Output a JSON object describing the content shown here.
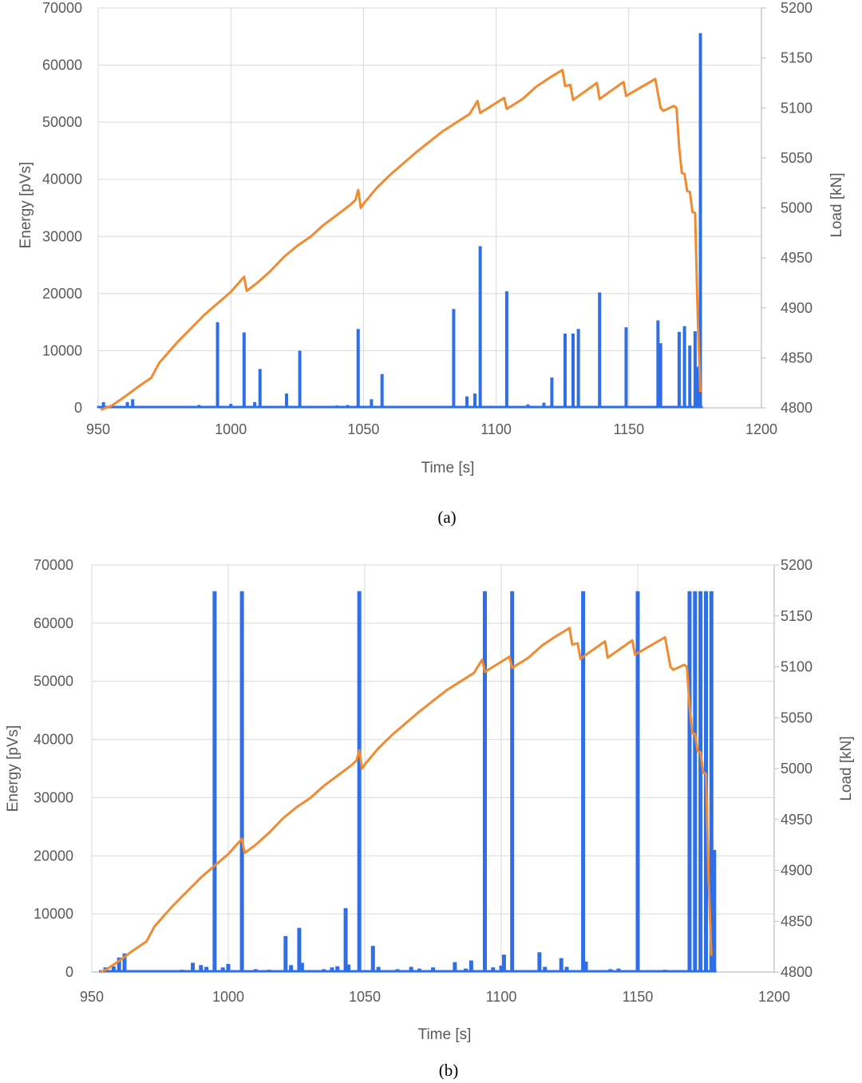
{
  "colors": {
    "energy": "#2E6FE8",
    "load": "#F28A30",
    "grid": "#D9D9D9",
    "axis": "#BFBFBF"
  },
  "chart_data": [
    {
      "type": "bar",
      "caption": "(a)",
      "xlabel": "Time [s]",
      "ylabel": "Energy [pVs]",
      "y2label": "Load [kN]",
      "xlim": [
        950,
        1200
      ],
      "ylim": [
        0,
        70000
      ],
      "y2lim": [
        4800,
        5200
      ],
      "xticks": [
        "950",
        "1000",
        "1050",
        "1100",
        "1150",
        "1200"
      ],
      "yticks": [
        "0",
        "10000",
        "20000",
        "30000",
        "40000",
        "50000",
        "60000",
        "70000"
      ],
      "y2ticks": [
        "4800",
        "4850",
        "4900",
        "4950",
        "5000",
        "5050",
        "5100",
        "5150",
        "5200"
      ],
      "grid": true,
      "series": [
        {
          "kind": "bar",
          "axis": "left",
          "points": [
            [
              952,
              1000
            ],
            [
              961,
              1000
            ],
            [
              963,
              1500
            ],
            [
              986,
              300
            ],
            [
              988,
              500
            ],
            [
              995,
              15000
            ],
            [
              1000,
              700
            ],
            [
              1005,
              13200
            ],
            [
              1009,
              1000
            ],
            [
              1011,
              6800
            ],
            [
              1021,
              2500
            ],
            [
              1026,
              10000
            ],
            [
              1033,
              300
            ],
            [
              1040,
              400
            ],
            [
              1044,
              500
            ],
            [
              1048,
              13800
            ],
            [
              1053,
              1500
            ],
            [
              1057,
              5900
            ],
            [
              1075,
              300
            ],
            [
              1084,
              17300
            ],
            [
              1089,
              2000
            ],
            [
              1092,
              2500
            ],
            [
              1094,
              28300
            ],
            [
              1104,
              20400
            ],
            [
              1112,
              600
            ],
            [
              1118,
              900
            ],
            [
              1121,
              5300
            ],
            [
              1126,
              13000
            ],
            [
              1129,
              13000
            ],
            [
              1131,
              13800
            ],
            [
              1139,
              20200
            ],
            [
              1149,
              14100
            ],
            [
              1161,
              15300
            ],
            [
              1162,
              11300
            ],
            [
              1169,
              13300
            ],
            [
              1171,
              14300
            ],
            [
              1173,
              10900
            ],
            [
              1175,
              13400
            ],
            [
              1176,
              7200
            ],
            [
              1177,
              65600
            ]
          ]
        },
        {
          "kind": "line",
          "axis": "right",
          "points": [
            [
              951,
              4798
            ],
            [
              955,
              4802
            ],
            [
              960,
              4811
            ],
            [
              965,
              4821
            ],
            [
              970,
              4830
            ],
            [
              973,
              4845
            ],
            [
              980,
              4866
            ],
            [
              990,
              4893
            ],
            [
              1000,
              4916
            ],
            [
              1005,
              4931
            ],
            [
              1006,
              4917
            ],
            [
              1010,
              4925
            ],
            [
              1015,
              4937
            ],
            [
              1020,
              4951
            ],
            [
              1025,
              4962
            ],
            [
              1030,
              4971
            ],
            [
              1035,
              4983
            ],
            [
              1040,
              4993
            ],
            [
              1045,
              5003
            ],
            [
              1047,
              5008
            ],
            [
              1048,
              5018
            ],
            [
              1049,
              5000
            ],
            [
              1050,
              5004
            ],
            [
              1055,
              5020
            ],
            [
              1060,
              5033
            ],
            [
              1070,
              5056
            ],
            [
              1080,
              5077
            ],
            [
              1090,
              5094
            ],
            [
              1093,
              5107
            ],
            [
              1094,
              5095
            ],
            [
              1103,
              5110
            ],
            [
              1104,
              5099
            ],
            [
              1110,
              5109
            ],
            [
              1115,
              5121
            ],
            [
              1120,
              5130
            ],
            [
              1125,
              5138
            ],
            [
              1126,
              5122
            ],
            [
              1128,
              5123
            ],
            [
              1129,
              5108
            ],
            [
              1138,
              5125
            ],
            [
              1139,
              5109
            ],
            [
              1148,
              5126
            ],
            [
              1149,
              5112
            ],
            [
              1160,
              5129
            ],
            [
              1162,
              5100
            ],
            [
              1163,
              5097
            ],
            [
              1167,
              5102
            ],
            [
              1168,
              5100
            ],
            [
              1169,
              5060
            ],
            [
              1170,
              5035
            ],
            [
              1171,
              5034
            ],
            [
              1172,
              5017
            ],
            [
              1173,
              5016
            ],
            [
              1174,
              4996
            ],
            [
              1175,
              4995
            ],
            [
              1176,
              4890
            ],
            [
              1177,
              4816
            ]
          ]
        }
      ]
    },
    {
      "type": "bar",
      "caption": "(b)",
      "xlabel": "Time [s]",
      "ylabel": "Energy [pVs]",
      "y2label": "Load [kN]",
      "xlim": [
        950,
        1200
      ],
      "ylim": [
        0,
        70000
      ],
      "y2lim": [
        4800,
        5200
      ],
      "xticks": [
        "950",
        "1000",
        "1050",
        "1100",
        "1150",
        "1200"
      ],
      "yticks": [
        "0",
        "10000",
        "20000",
        "30000",
        "40000",
        "50000",
        "60000",
        "70000"
      ],
      "y2ticks": [
        "4800",
        "4850",
        "4900",
        "4950",
        "5000",
        "5050",
        "5100",
        "5150",
        "5200"
      ],
      "grid": true,
      "series": [
        {
          "kind": "bar",
          "axis": "left",
          "points": [
            [
              955,
              800
            ],
            [
              958,
              1000
            ],
            [
              960,
              2500
            ],
            [
              962,
              3200
            ],
            [
              975,
              300
            ],
            [
              983,
              400
            ],
            [
              987,
              1600
            ],
            [
              990,
              1200
            ],
            [
              992,
              900
            ],
            [
              995,
              65500
            ],
            [
              998,
              800
            ],
            [
              1000,
              1400
            ],
            [
              1005,
              65500
            ],
            [
              1010,
              500
            ],
            [
              1015,
              400
            ],
            [
              1021,
              6200
            ],
            [
              1023,
              1200
            ],
            [
              1026,
              7600
            ],
            [
              1027,
              1600
            ],
            [
              1035,
              500
            ],
            [
              1038,
              800
            ],
            [
              1040,
              1000
            ],
            [
              1043,
              11000
            ],
            [
              1044,
              1300
            ],
            [
              1048,
              65500
            ],
            [
              1053,
              4500
            ],
            [
              1055,
              900
            ],
            [
              1062,
              500
            ],
            [
              1067,
              900
            ],
            [
              1070,
              600
            ],
            [
              1075,
              800
            ],
            [
              1083,
              1700
            ],
            [
              1087,
              600
            ],
            [
              1089,
              2000
            ],
            [
              1094,
              65500
            ],
            [
              1097,
              800
            ],
            [
              1100,
              1100
            ],
            [
              1101,
              3000
            ],
            [
              1104,
              65500
            ],
            [
              1114,
              3400
            ],
            [
              1116,
              900
            ],
            [
              1122,
              2400
            ],
            [
              1124,
              900
            ],
            [
              1130,
              65500
            ],
            [
              1131,
              1800
            ],
            [
              1140,
              500
            ],
            [
              1143,
              600
            ],
            [
              1150,
              65500
            ],
            [
              1160,
              400
            ],
            [
              1169,
              65500
            ],
            [
              1171,
              65500
            ],
            [
              1173,
              65500
            ],
            [
              1175,
              65500
            ],
            [
              1177,
              65500
            ],
            [
              1178,
              21000
            ]
          ]
        },
        {
          "kind": "line",
          "axis": "right",
          "points": [
            [
              953,
              4800
            ],
            [
              955,
              4802
            ],
            [
              960,
              4811
            ],
            [
              965,
              4821
            ],
            [
              970,
              4830
            ],
            [
              973,
              4845
            ],
            [
              980,
              4866
            ],
            [
              990,
              4893
            ],
            [
              1000,
              4916
            ],
            [
              1005,
              4931
            ],
            [
              1006,
              4917
            ],
            [
              1010,
              4925
            ],
            [
              1015,
              4937
            ],
            [
              1020,
              4951
            ],
            [
              1025,
              4962
            ],
            [
              1030,
              4971
            ],
            [
              1035,
              4983
            ],
            [
              1040,
              4993
            ],
            [
              1045,
              5003
            ],
            [
              1047,
              5008
            ],
            [
              1048,
              5018
            ],
            [
              1049,
              5000
            ],
            [
              1050,
              5004
            ],
            [
              1055,
              5020
            ],
            [
              1060,
              5033
            ],
            [
              1070,
              5056
            ],
            [
              1080,
              5077
            ],
            [
              1090,
              5094
            ],
            [
              1093,
              5107
            ],
            [
              1094,
              5095
            ],
            [
              1103,
              5110
            ],
            [
              1104,
              5099
            ],
            [
              1110,
              5109
            ],
            [
              1115,
              5121
            ],
            [
              1120,
              5130
            ],
            [
              1125,
              5138
            ],
            [
              1126,
              5122
            ],
            [
              1128,
              5123
            ],
            [
              1129,
              5108
            ],
            [
              1138,
              5125
            ],
            [
              1139,
              5109
            ],
            [
              1148,
              5126
            ],
            [
              1149,
              5112
            ],
            [
              1160,
              5129
            ],
            [
              1162,
              5100
            ],
            [
              1163,
              5097
            ],
            [
              1167,
              5102
            ],
            [
              1168,
              5100
            ],
            [
              1169,
              5060
            ],
            [
              1170,
              5035
            ],
            [
              1171,
              5034
            ],
            [
              1172,
              5017
            ],
            [
              1173,
              5016
            ],
            [
              1174,
              4996
            ],
            [
              1175,
              4995
            ],
            [
              1176,
              4890
            ],
            [
              1177,
              4816
            ]
          ]
        }
      ]
    }
  ]
}
